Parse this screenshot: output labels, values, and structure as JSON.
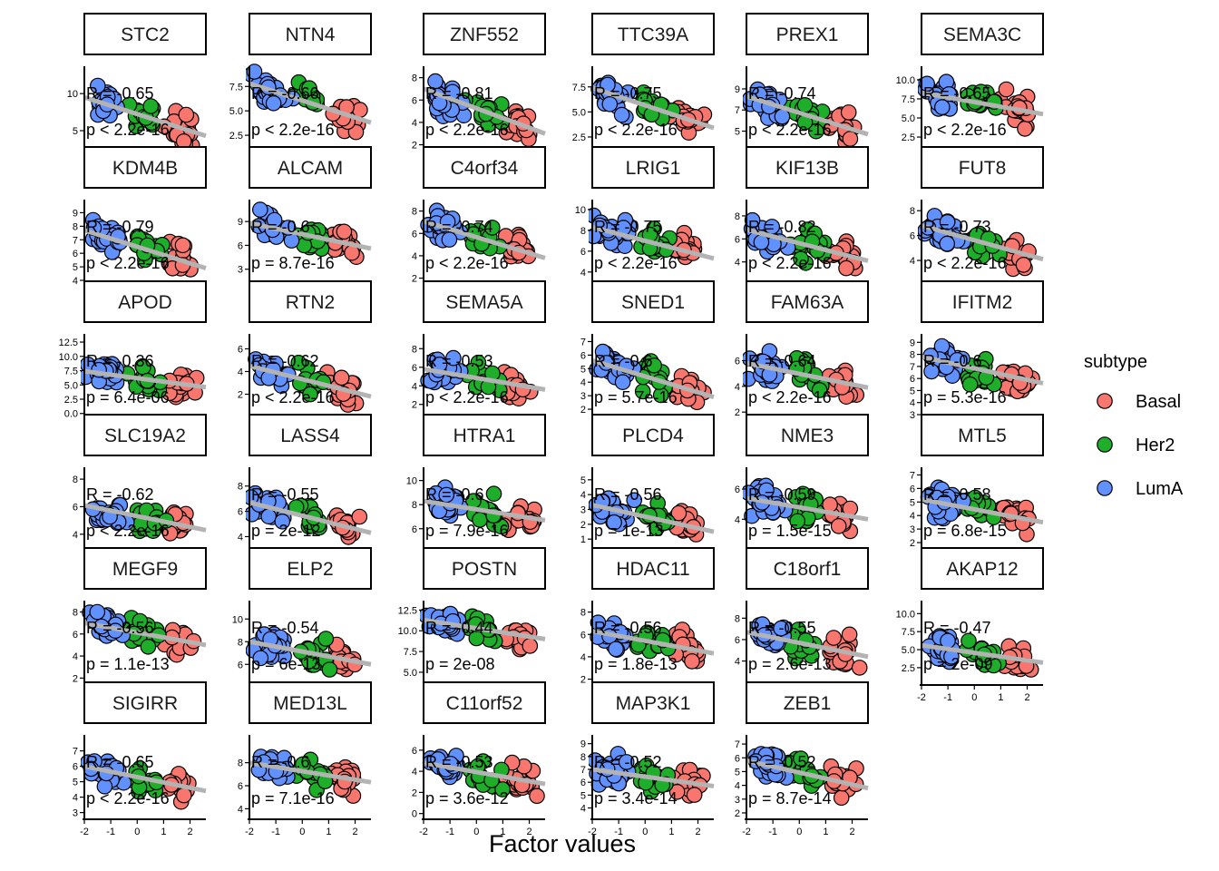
{
  "chart_data": {
    "type": "scatter",
    "facet_variable": "gene",
    "xlabel": "Factor values",
    "ylabel": "",
    "xlim": [
      -2,
      2.6
    ],
    "x_ticks": [
      -2,
      -1,
      0,
      1,
      2
    ],
    "x_tick_labels": [
      "-2",
      "-1",
      "0",
      "1",
      "2"
    ],
    "legend": {
      "title": "subtype",
      "placement": "right",
      "entries": [
        {
          "label": "Basal",
          "color": "#F8766D"
        },
        {
          "label": "Her2",
          "color": "#1FAE29"
        },
        {
          "label": "LumA",
          "color": "#6190FF"
        }
      ]
    },
    "fit_line_color": "#b3b3b3",
    "panels": [
      {
        "gene": "STC2",
        "ylim": [
          2.8,
          13.2
        ],
        "yticks": [
          5,
          10
        ],
        "ytick_labels": [
          "5",
          "10"
        ],
        "line": [
          9.5,
          4.3
        ],
        "R": "R = -0.65",
        "p": "p < 2.2e-16",
        "x_axis": false
      },
      {
        "gene": "NTN4",
        "ylim": [
          1.3,
          9.2
        ],
        "yticks": [
          2.5,
          5,
          7.5
        ],
        "ytick_labels": [
          "2.5",
          "5.0",
          "7.5"
        ],
        "line": [
          7.8,
          3.8
        ],
        "R": "R = -0.66",
        "p": "p < 2.2e-16",
        "x_axis": false
      },
      {
        "gene": "ZNF552",
        "ylim": [
          1.8,
          8.7
        ],
        "yticks": [
          2,
          4,
          6,
          8
        ],
        "ytick_labels": [
          "2",
          "4",
          "6",
          "8"
        ],
        "line": [
          7.0,
          3.0
        ],
        "R": "R = -0.81",
        "p": "p < 2.2e-16",
        "x_axis": false
      },
      {
        "gene": "TTC39A",
        "ylim": [
          1.5,
          9.2
        ],
        "yticks": [
          2.5,
          5,
          7.5
        ],
        "ytick_labels": [
          "2.5",
          "5.0",
          "7.5"
        ],
        "line": [
          7.4,
          3.4
        ],
        "R": "R = -0.75",
        "p": "p < 2.2e-16",
        "x_axis": false
      },
      {
        "gene": "PREX1",
        "ylim": [
          3.5,
          10.8
        ],
        "yticks": [
          5,
          7,
          9
        ],
        "ytick_labels": [
          "5",
          "7",
          "9"
        ],
        "line": [
          8.3,
          4.7
        ],
        "R": "R = -0.74",
        "p": "p < 2.2e-16",
        "x_axis": false
      },
      {
        "gene": "SEMA3C",
        "ylim": [
          1.2,
          11.3
        ],
        "yticks": [
          2.5,
          5,
          7.5,
          10
        ],
        "ytick_labels": [
          "2.5",
          "5.0",
          "7.5",
          "10.0"
        ],
        "line": [
          8.3,
          5.5
        ],
        "R": "R = -0.65",
        "p": "p < 2.2e-16",
        "x_axis": false
      },
      {
        "gene": "KDM4B",
        "ylim": [
          4,
          9.7
        ],
        "yticks": [
          4,
          5,
          6,
          7,
          8,
          9
        ],
        "ytick_labels": [
          "4",
          "5",
          "6",
          "7",
          "8",
          "9"
        ],
        "line": [
          7.7,
          4.9
        ],
        "R": "R = -0.79",
        "p": "p < 2.2e-16",
        "x_axis": false
      },
      {
        "gene": "ALCAM",
        "ylim": [
          1.6,
          11.3
        ],
        "yticks": [
          3,
          6,
          9
        ],
        "ytick_labels": [
          "3",
          "6",
          "9"
        ],
        "line": [
          8.8,
          5.6
        ],
        "R": "R = -0.6",
        "p": "p = 8.7e-16",
        "x_axis": false
      },
      {
        "gene": "C4orf34",
        "ylim": [
          1.8,
          8.7
        ],
        "yticks": [
          2,
          4,
          6,
          8
        ],
        "ytick_labels": [
          "2",
          "4",
          "6",
          "8"
        ],
        "line": [
          7.1,
          3.8
        ],
        "R": "R = -0.74",
        "p": "p < 2.2e-16",
        "x_axis": false
      },
      {
        "gene": "LRIG1",
        "ylim": [
          3.2,
          10.6
        ],
        "yticks": [
          4,
          6,
          8,
          10
        ],
        "ytick_labels": [
          "4",
          "6",
          "8",
          "10"
        ],
        "line": [
          8.3,
          5.3
        ],
        "R": "R = -0.75",
        "p": "p < 2.2e-16",
        "x_axis": false
      },
      {
        "gene": "KIF13B",
        "ylim": [
          2.4,
          9.1
        ],
        "yticks": [
          4,
          6,
          8
        ],
        "ytick_labels": [
          "4",
          "6",
          "8"
        ],
        "line": [
          6.8,
          4.1
        ],
        "R": "R = -0.82",
        "p": "p < 2.2e-16",
        "x_axis": false
      },
      {
        "gene": "FUT8",
        "ylim": [
          2.4,
          8.6
        ],
        "yticks": [
          4,
          6,
          8
        ],
        "ytick_labels": [
          "4",
          "6",
          "8"
        ],
        "line": [
          6.8,
          4.1
        ],
        "R": "R = -0.73",
        "p": "p < 2.2e-16",
        "x_axis": false
      },
      {
        "gene": "APOD",
        "ylim": [
          -0.2,
          13.3
        ],
        "yticks": [
          0,
          2.5,
          5,
          7.5,
          10,
          12.5
        ],
        "ytick_labels": [
          "0.0",
          "2.5",
          "5.0",
          "7.5",
          "10.0",
          "12.5"
        ],
        "line": [
          7.4,
          4.6
        ],
        "R": "R = -0.36",
        "p": "p = 6.4e-06",
        "x_axis": false
      },
      {
        "gene": "RTN2",
        "ylim": [
          0.2,
          7
        ],
        "yticks": [
          2,
          4,
          6
        ],
        "ytick_labels": [
          "2",
          "4",
          "6"
        ],
        "line": [
          4.5,
          1.8
        ],
        "R": "R = -0.62",
        "p": "p < 2.2e-16",
        "x_axis": false
      },
      {
        "gene": "SEMA5A",
        "ylim": [
          0.9,
          9.2
        ],
        "yticks": [
          2,
          4,
          6,
          8
        ],
        "ytick_labels": [
          "2",
          "4",
          "6",
          "8"
        ],
        "line": [
          5.8,
          3.6
        ],
        "R": "R = -0.53",
        "p": "p < 2.2e-16",
        "x_axis": false
      },
      {
        "gene": "SNED1",
        "ylim": [
          1.6,
          7.3
        ],
        "yticks": [
          2,
          3,
          4,
          5,
          6,
          7
        ],
        "ytick_labels": [
          "2",
          "3",
          "4",
          "5",
          "6",
          "7"
        ],
        "line": [
          5.6,
          2.9
        ],
        "R": "R = -0.6",
        "p": "p = 5.7e-16",
        "x_axis": false
      },
      {
        "gene": "FAM63A",
        "ylim": [
          1.8,
          7.8
        ],
        "yticks": [
          2,
          4,
          6
        ],
        "ytick_labels": [
          "2",
          "4",
          "6"
        ],
        "line": [
          5.8,
          3.9
        ],
        "R": "R = -0.64",
        "p": "p < 2.2e-16",
        "x_axis": false
      },
      {
        "gene": "IFITM2",
        "ylim": [
          3,
          9.4
        ],
        "yticks": [
          3,
          4,
          5,
          6,
          7,
          8,
          9
        ],
        "ytick_labels": [
          "3",
          "4",
          "5",
          "6",
          "7",
          "8",
          "9"
        ],
        "line": [
          7.8,
          5.6
        ],
        "R": "R = -0.6",
        "p": "p = 5.3e-16",
        "x_axis": false
      },
      {
        "gene": "SLC19A2",
        "ylim": [
          3,
          8.6
        ],
        "yticks": [
          4,
          6,
          8
        ],
        "ytick_labels": [
          "4",
          "6",
          "8"
        ],
        "line": [
          6.1,
          4.3
        ],
        "R": "R = -0.62",
        "p": "p < 2.2e-16",
        "x_axis": false
      },
      {
        "gene": "LASS4",
        "ylim": [
          3.1,
          9.2
        ],
        "yticks": [
          4,
          6,
          8
        ],
        "ytick_labels": [
          "4",
          "6",
          "8"
        ],
        "line": [
          6.7,
          4.3
        ],
        "R": "R = -0.55",
        "p": "p = 2e-12",
        "x_axis": false
      },
      {
        "gene": "HTRA1",
        "ylim": [
          4.4,
          10.8
        ],
        "yticks": [
          6,
          8,
          10
        ],
        "ytick_labels": [
          "6",
          "8",
          "10"
        ],
        "line": [
          8.3,
          6.7
        ],
        "R": "R = -0.6",
        "p": "p = 7.9e-16",
        "x_axis": false
      },
      {
        "gene": "PLCD4",
        "ylim": [
          0.4,
          5.6
        ],
        "yticks": [
          1,
          2,
          3,
          4,
          5
        ],
        "ytick_labels": [
          "1",
          "2",
          "3",
          "4",
          "5"
        ],
        "line": [
          3.3,
          1.5
        ],
        "R": "R = -0.56",
        "p": "p = 1e-13",
        "x_axis": false
      },
      {
        "gene": "NME3",
        "ylim": [
          2.1,
          7.2
        ],
        "yticks": [
          4,
          6
        ],
        "ytick_labels": [
          "4",
          "6"
        ],
        "line": [
          5.4,
          4.0
        ],
        "R": "R = -0.59",
        "p": "p = 1.5e-15",
        "x_axis": false
      },
      {
        "gene": "MTL5",
        "ylim": [
          1.6,
          7.3
        ],
        "yticks": [
          2,
          3,
          4,
          5,
          6,
          7
        ],
        "ytick_labels": [
          "2",
          "3",
          "4",
          "5",
          "6",
          "7"
        ],
        "line": [
          5.2,
          3.5
        ],
        "R": "R = -0.58",
        "p": "p = 6.8e-15",
        "x_axis": false
      },
      {
        "gene": "MEGF9",
        "ylim": [
          1.7,
          8.7
        ],
        "yticks": [
          2,
          4,
          6,
          8
        ],
        "ytick_labels": [
          "2",
          "4",
          "6",
          "8"
        ],
        "line": [
          7.0,
          5.0
        ],
        "R": "R = -0.56",
        "p": "p = 1.1e-13",
        "x_axis": false
      },
      {
        "gene": "ELP2",
        "ylim": [
          4.5,
          11.3
        ],
        "yticks": [
          6,
          8,
          10
        ],
        "ytick_labels": [
          "6",
          "8",
          "10"
        ],
        "line": [
          8.0,
          6.0
        ],
        "R": "R = -0.54",
        "p": "p = 6e-13",
        "x_axis": false
      },
      {
        "gene": "POSTN",
        "ylim": [
          3.9,
          13.2
        ],
        "yticks": [
          5,
          7.5,
          10,
          12.5
        ],
        "ytick_labels": [
          "5.0",
          "7.5",
          "10.0",
          "12.5"
        ],
        "line": [
          11.3,
          9.0
        ],
        "R": "R = -0.44",
        "p": "p = 2e-08",
        "x_axis": false
      },
      {
        "gene": "HDAC11",
        "ylim": [
          1.8,
          8.7
        ],
        "yticks": [
          2,
          4,
          6,
          8
        ],
        "ytick_labels": [
          "2",
          "4",
          "6",
          "8"
        ],
        "line": [
          6.3,
          4.3
        ],
        "R": "R = -0.56",
        "p": "p = 1.8e-13",
        "x_axis": false
      },
      {
        "gene": "C18orf1",
        "ylim": [
          2.1,
          9.3
        ],
        "yticks": [
          4,
          6,
          8
        ],
        "ytick_labels": [
          "4",
          "6",
          "8"
        ],
        "line": [
          6.7,
          4.4
        ],
        "R": "R = -0.55",
        "p": "p = 2.6e-13",
        "x_axis": false
      },
      {
        "gene": "AKAP12",
        "ylim": [
          0.6,
          11.3
        ],
        "yticks": [
          2.5,
          5,
          7.5,
          10
        ],
        "ytick_labels": [
          "2.5",
          "5.0",
          "7.5",
          "10.0"
        ],
        "line": [
          5.6,
          3.2
        ],
        "R": "R = -0.47",
        "p": "p = 2e-09",
        "x_axis": true
      },
      {
        "gene": "SIGIRR",
        "ylim": [
          2.8,
          7.8
        ],
        "yticks": [
          3,
          4,
          5,
          6,
          7
        ],
        "ytick_labels": [
          "3",
          "4",
          "5",
          "6",
          "7"
        ],
        "line": [
          6.0,
          4.4
        ],
        "R": "R = -0.65",
        "p": "p < 2.2e-16",
        "x_axis": true
      },
      {
        "gene": "MED13L",
        "ylim": [
          3.4,
          10.1
        ],
        "yticks": [
          4,
          6,
          8
        ],
        "ytick_labels": [
          "4",
          "6",
          "8"
        ],
        "line": [
          8.0,
          6.3
        ],
        "R": "R = -0.6",
        "p": "p = 7.1e-16",
        "x_axis": true
      },
      {
        "gene": "C11orf52",
        "ylim": [
          -0.2,
          7.1
        ],
        "yticks": [
          0,
          2,
          4,
          6
        ],
        "ytick_labels": [
          "0",
          "2",
          "4",
          "6"
        ],
        "line": [
          4.8,
          2.8
        ],
        "R": "R = -0.53",
        "p": "p = 3.6e-12",
        "x_axis": true
      },
      {
        "gene": "MAP3K1",
        "ylim": [
          3.4,
          9.4
        ],
        "yticks": [
          4,
          5,
          6,
          7,
          8,
          9
        ],
        "ytick_labels": [
          "4",
          "5",
          "6",
          "7",
          "8",
          "9"
        ],
        "line": [
          7.0,
          5.7
        ],
        "R": "R = -0.52",
        "p": "p = 3.4e-14",
        "x_axis": true
      },
      {
        "gene": "ZEB1",
        "ylim": [
          1.8,
          7.4
        ],
        "yticks": [
          2,
          3,
          4,
          5,
          6,
          7
        ],
        "ytick_labels": [
          "2",
          "3",
          "4",
          "5",
          "6",
          "7"
        ],
        "line": [
          5.8,
          3.8
        ],
        "R": "R = -0.52",
        "p": "p = 8.7e-14",
        "x_axis": true
      }
    ]
  }
}
